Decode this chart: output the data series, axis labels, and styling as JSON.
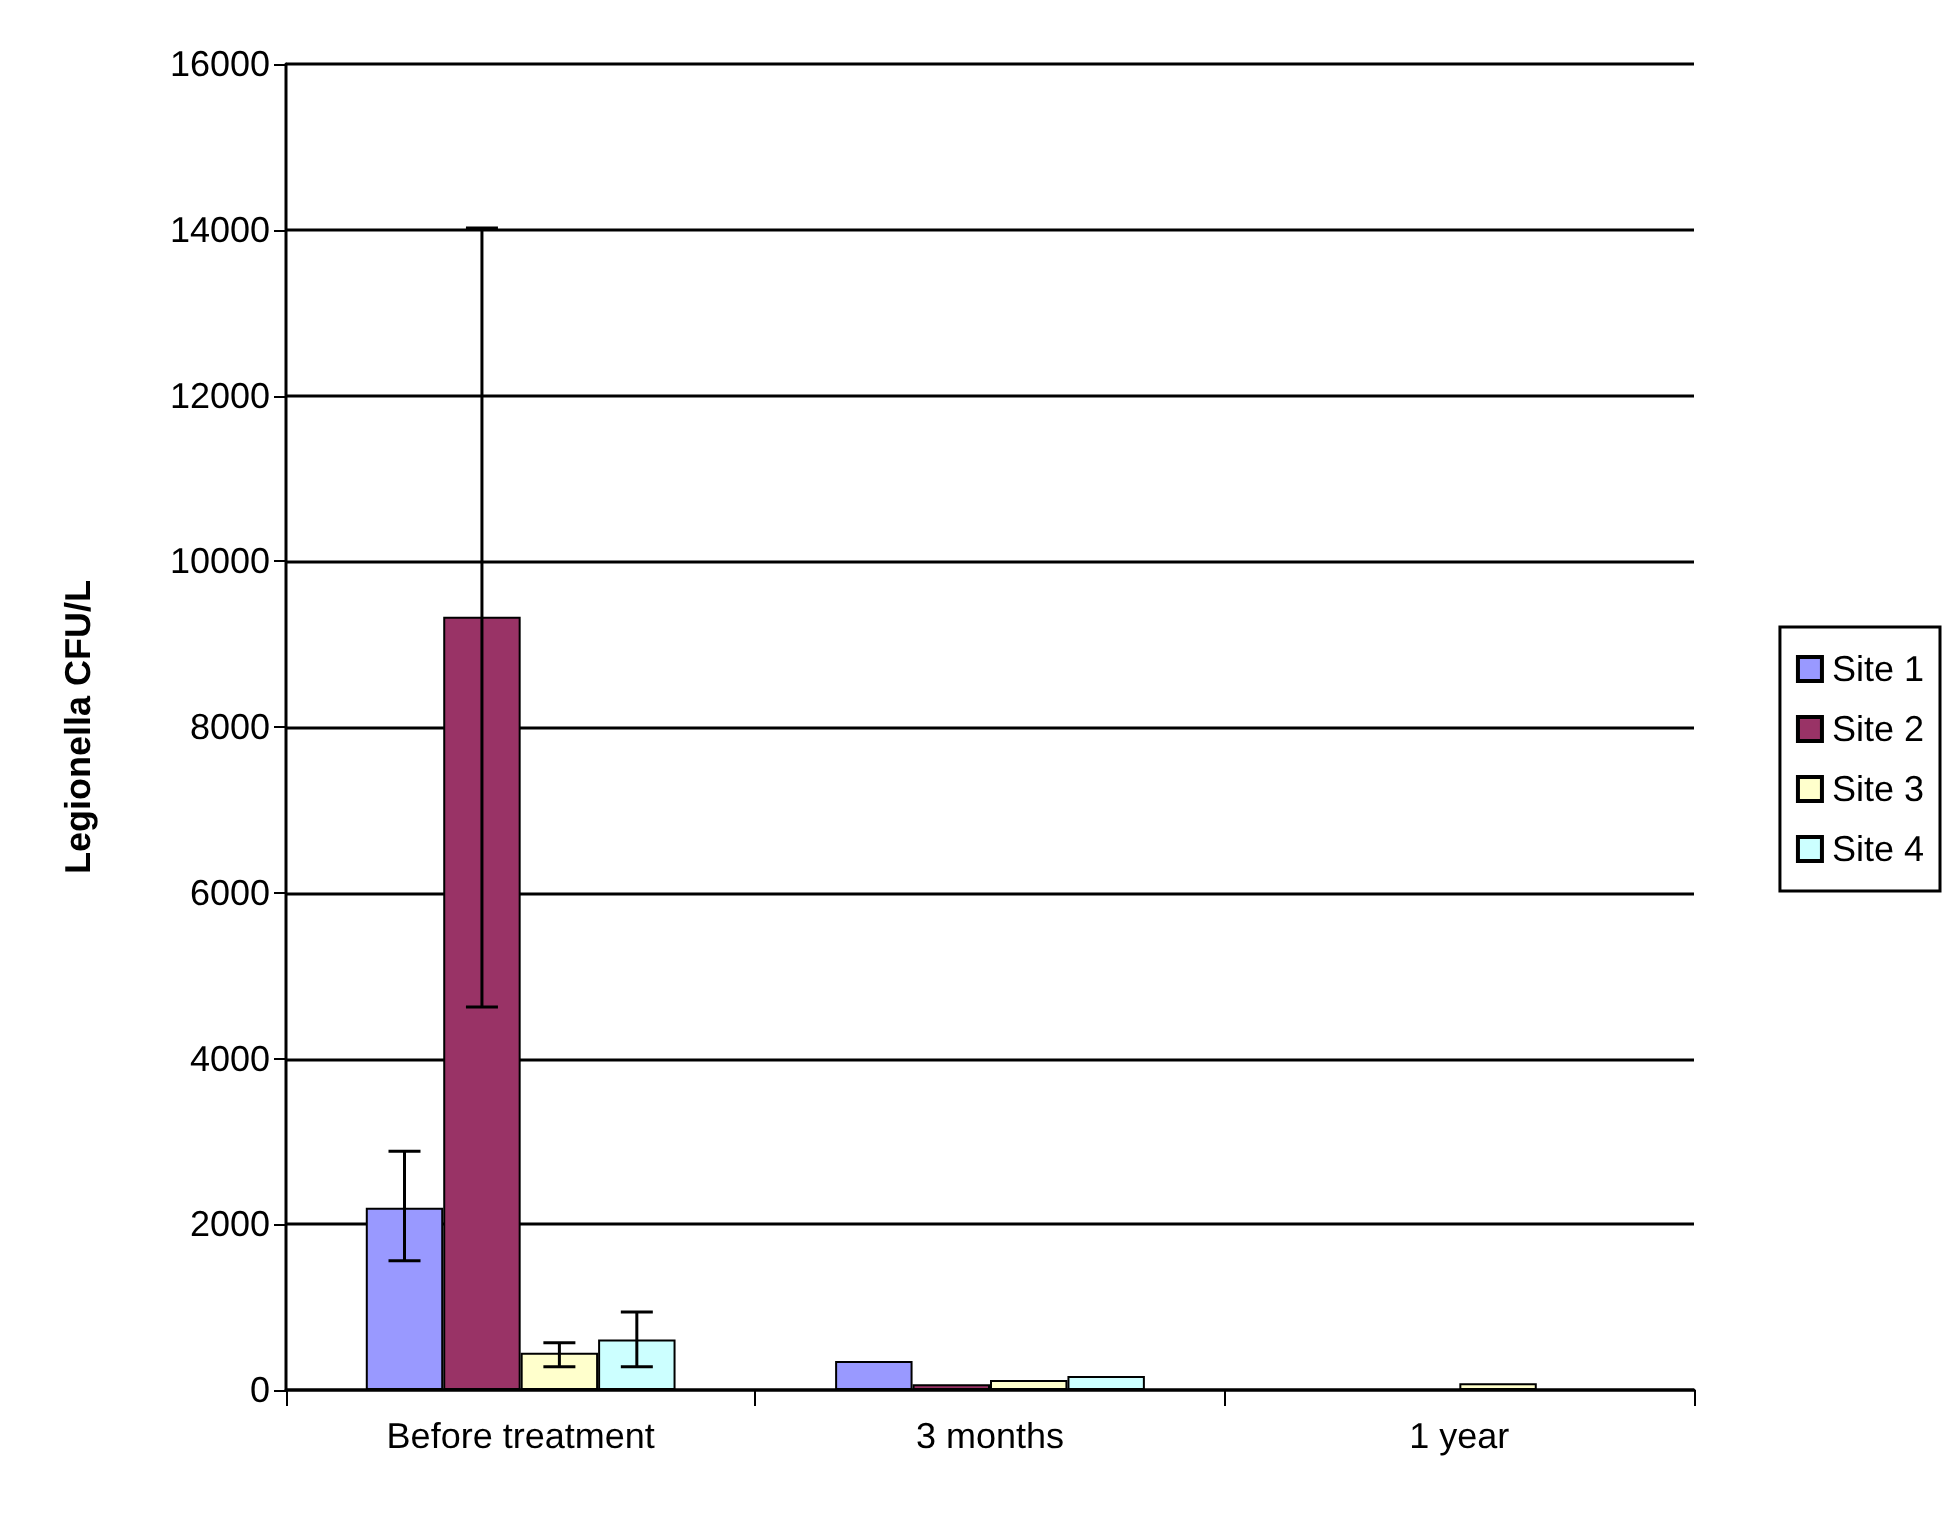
{
  "chart_data": {
    "type": "bar",
    "ylabel": "Legionella CFU/L",
    "categories": [
      "Before treatment",
      "3 months",
      "1 year"
    ],
    "series": [
      {
        "name": "Site 1",
        "color": "#9999ff",
        "values": [
          2200,
          350,
          0
        ],
        "errors": [
          [
            1560,
            2880
          ],
          null,
          null
        ]
      },
      {
        "name": "Site 2",
        "color": "#993366",
        "values": [
          9330,
          70,
          0
        ],
        "errors": [
          [
            4620,
            14020
          ],
          null,
          null
        ]
      },
      {
        "name": "Site 3",
        "color": "#ffffcc",
        "values": [
          450,
          120,
          80
        ],
        "errors": [
          [
            280,
            570
          ],
          null,
          null
        ]
      },
      {
        "name": "Site 4",
        "color": "#ccffff",
        "values": [
          610,
          170,
          0
        ],
        "errors": [
          [
            280,
            940
          ],
          null,
          null
        ]
      }
    ],
    "ylim": [
      0,
      16000
    ],
    "yticks": [
      0,
      2000,
      4000,
      6000,
      8000,
      10000,
      12000,
      14000,
      16000
    ],
    "grid": "y",
    "legend": "right"
  }
}
